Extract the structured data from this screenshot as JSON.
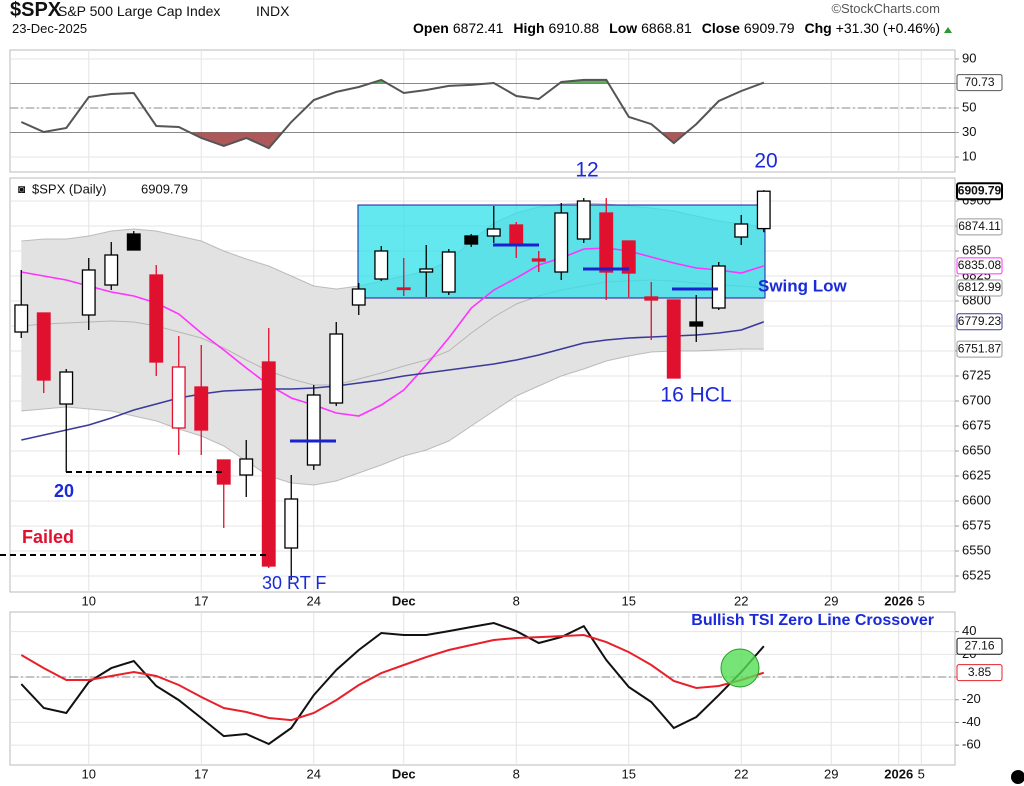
{
  "header": {
    "symbol": "$SPX",
    "name": "S&P 500 Large Cap Index",
    "exchange": "INDX",
    "date": "23-Dec-2025",
    "source": "©StockCharts.com",
    "open_label": "Open",
    "high_label": "High",
    "low_label": "Low",
    "close_label": "Close",
    "chg_label": "Chg",
    "chg": "+31.30 (+0.46%)"
  },
  "chart_data": [
    {
      "type": "line",
      "color": "#555555",
      "values": [
        38.6,
        30.4,
        33.7,
        59,
        61.4,
        62.2,
        35.3,
        34.5,
        25.5,
        19,
        25.5,
        17.3,
        38.6,
        56.5,
        63.1,
        67.1,
        72.9,
        62.2,
        64.7,
        68,
        68.8,
        70.4,
        59.8,
        57.3,
        71.2,
        72.9,
        72.9,
        42.7,
        36.9,
        21.4,
        36.9,
        55.7,
        63.9,
        70.73,
        null,
        null,
        null,
        null,
        null,
        null,
        null,
        null
      ],
      "ylim": [
        -2.2,
        97.3
      ],
      "yticks": [
        10,
        30,
        50,
        70,
        90
      ],
      "reference_lines": [
        70,
        30
      ],
      "centerline": 50,
      "overbought_color": "#3a9a3a",
      "oversold_color": "#9a3030",
      "grid": true
    },
    {
      "type": "candlestick",
      "title": "$SPX (Daily)",
      "categories": [
        null,
        null,
        null,
        "10",
        null,
        null,
        null,
        null,
        "17",
        null,
        null,
        null,
        null,
        "24",
        null,
        null,
        null,
        "Dec",
        null,
        null,
        null,
        null,
        "8",
        null,
        null,
        null,
        null,
        "15",
        null,
        null,
        null,
        null,
        "22",
        null,
        null,
        null,
        "29",
        null,
        null,
        "2026",
        "5",
        null
      ],
      "open": [
        6769,
        6788,
        6697,
        6786,
        6816,
        6867,
        6826,
        6673,
        6714,
        6641,
        6626,
        6739,
        6553,
        6636,
        6698,
        6796,
        6822,
        6813,
        6829,
        6809,
        6865,
        6865,
        6876,
        6842,
        6829,
        6862,
        6888,
        6860,
        6804,
        6801,
        6779,
        6793,
        6864,
        6872.41,
        null,
        null,
        null,
        null,
        null,
        null,
        null,
        null
      ],
      "high": [
        6831,
        6788,
        6732,
        6843,
        6859,
        6870,
        6836,
        6765,
        6756,
        6641,
        6661,
        6773,
        6626,
        6716,
        6779,
        6818,
        6855,
        6843,
        6856,
        6852,
        6867,
        6895,
        6879,
        6850,
        6898,
        6903,
        6903,
        6860,
        6819,
        6801,
        6806,
        6839,
        6886,
        6910.88,
        null,
        null,
        null,
        null,
        null,
        null,
        null,
        null
      ],
      "low": [
        6763,
        6708,
        6629,
        6771,
        6811,
        6851,
        6725,
        6646,
        6646,
        6573,
        6604,
        6533,
        6521,
        6631,
        6695,
        6786,
        6820,
        6805,
        6804,
        6806,
        6854,
        6858,
        6843,
        6829,
        6821,
        6858,
        6801,
        6804,
        6761,
        6723,
        6759,
        6791,
        6856,
        6868.81,
        null,
        null,
        null,
        null,
        null,
        null,
        null,
        null
      ],
      "close": [
        6796,
        6721,
        6729,
        6831,
        6846,
        6851,
        6739,
        6734,
        6671,
        6617,
        6642,
        6535,
        6602,
        6706,
        6767,
        6812,
        6850,
        6812,
        6832,
        6849,
        6857,
        6872,
        6856,
        6840,
        6888,
        6900,
        6829,
        6828,
        6801,
        6723,
        6775,
        6835,
        6877,
        6909.79,
        null,
        null,
        null,
        null,
        null,
        null,
        null,
        null
      ],
      "up_color": "#000000",
      "down_color": "#e0102f",
      "bands": {
        "color": "#999999",
        "fill": "#e2e2e2",
        "upper": [
          6860,
          6862,
          6862,
          6865,
          6870,
          6872,
          6870,
          6865,
          6860,
          6850,
          6842,
          6835,
          6825,
          6815,
          6812,
          6815,
          6820,
          6825,
          6830,
          6840,
          6860,
          6878,
          6888,
          6894,
          6897,
          6898,
          6897,
          6895,
          6893,
          6890,
          6885,
          6880,
          6877,
          6874.11,
          null,
          null,
          null,
          null,
          null,
          null,
          null,
          null
        ],
        "middle": [
          6775,
          6777,
          6778,
          6779,
          6780,
          6779,
          6775,
          6769,
          6763,
          6753,
          6741,
          6730,
          6722,
          6716,
          6716,
          6722,
          6728,
          6735,
          6741,
          6750,
          6768,
          6784,
          6797,
          6805,
          6811,
          6815,
          6819,
          6820,
          6821,
          6820,
          6818,
          6816,
          6815,
          6812.99,
          null,
          null,
          null,
          null,
          null,
          null,
          null,
          null
        ],
        "lower": [
          6690,
          6692,
          6694,
          6692,
          6690,
          6685,
          6680,
          6672,
          6665,
          6655,
          6640,
          6625,
          6618,
          6616,
          6620,
          6628,
          6636,
          6645,
          6651,
          6660,
          6675,
          6690,
          6705,
          6715,
          6725,
          6732,
          6740,
          6745,
          6749,
          6750,
          6750,
          6751,
          6752,
          6751.87,
          null,
          null,
          null,
          null,
          null,
          null,
          null,
          null
        ]
      },
      "overlays": [
        {
          "color": "#ff33ff",
          "values": [
            6829,
            6825,
            6821,
            6815,
            6809,
            6805,
            6798,
            6787,
            6768,
            6751,
            6733,
            6716,
            6703,
            6696,
            6688,
            6685,
            6696,
            6711,
            6736,
            6763,
            6793,
            6811,
            6823,
            6836,
            6843,
            6852,
            6853,
            6850,
            6844,
            6838,
            6833,
            6831,
            6828,
            6835.08,
            null,
            null,
            null,
            null,
            null,
            null,
            null,
            null
          ]
        },
        {
          "color": "#3a3a9a",
          "values": [
            6661,
            6666,
            6671,
            6676,
            6683,
            6691,
            6697,
            6703,
            6707,
            6710,
            6711,
            6712,
            6712,
            6713,
            6715,
            6718,
            6721,
            6725,
            6728,
            6731,
            6734,
            6737,
            6741,
            6746,
            6752,
            6758,
            6761,
            6763,
            6764,
            6765,
            6766,
            6768,
            6771,
            6779.23,
            null,
            null,
            null,
            null,
            null,
            null,
            null,
            null
          ]
        }
      ],
      "ylim": [
        6509,
        6923
      ],
      "yticks": [
        6525,
        6550,
        6575,
        6600,
        6625,
        6650,
        6675,
        6700,
        6725,
        6750,
        6775,
        6800,
        6825,
        6850,
        6875,
        6900
      ],
      "grid": true,
      "annotations": [
        "12",
        "20",
        "Swing Low",
        "16 HCL",
        "20",
        "Failed",
        "30 RT F"
      ]
    },
    {
      "type": "line",
      "categories": [
        null,
        null,
        null,
        "10",
        null,
        null,
        null,
        null,
        "17",
        null,
        null,
        null,
        null,
        "24",
        null,
        null,
        null,
        "Dec",
        null,
        null,
        null,
        null,
        "8",
        null,
        null,
        null,
        null,
        "15",
        null,
        null,
        null,
        null,
        "22",
        null,
        null,
        null,
        "29",
        null,
        null,
        "2026",
        "5",
        null
      ],
      "series": [
        {
          "color": "#111111",
          "values": [
            -6.2,
            -27.3,
            -31.7,
            -4.4,
            7.9,
            14.1,
            -7.9,
            -20.3,
            -36.1,
            -52,
            -50.2,
            -59,
            -44.9,
            -15.9,
            6.2,
            23.8,
            38.8,
            37,
            37,
            40.5,
            44.1,
            47.6,
            40.5,
            30,
            35.2,
            44.9,
            15,
            -8.8,
            -22,
            -44.9,
            -35.2,
            -15.9,
            4.4,
            27.16,
            null,
            null,
            null,
            null,
            null,
            null,
            null,
            null
          ]
        },
        {
          "color": "#e8202a",
          "values": [
            19.4,
            7.9,
            -2.6,
            -2.6,
            0.9,
            4.4,
            0.9,
            -7,
            -17.6,
            -27.3,
            -30.8,
            -36.1,
            -37.9,
            -31.7,
            -20.3,
            -7,
            3.5,
            10.6,
            17.6,
            23.8,
            28.2,
            32.6,
            34.4,
            35.2,
            36.1,
            37,
            30.8,
            22,
            10.6,
            -3.5,
            -9.7,
            -7.9,
            -2.6,
            3.85,
            null,
            null,
            null,
            null,
            null,
            null,
            null,
            null
          ]
        }
      ],
      "ylim": [
        -77.5,
        57.3
      ],
      "yticks": [
        -60,
        -40,
        -20,
        0,
        20,
        40
      ],
      "centerline": 0,
      "grid": true,
      "annotations": [
        "Bullish TSI Zero Line Crossover"
      ]
    }
  ]
}
